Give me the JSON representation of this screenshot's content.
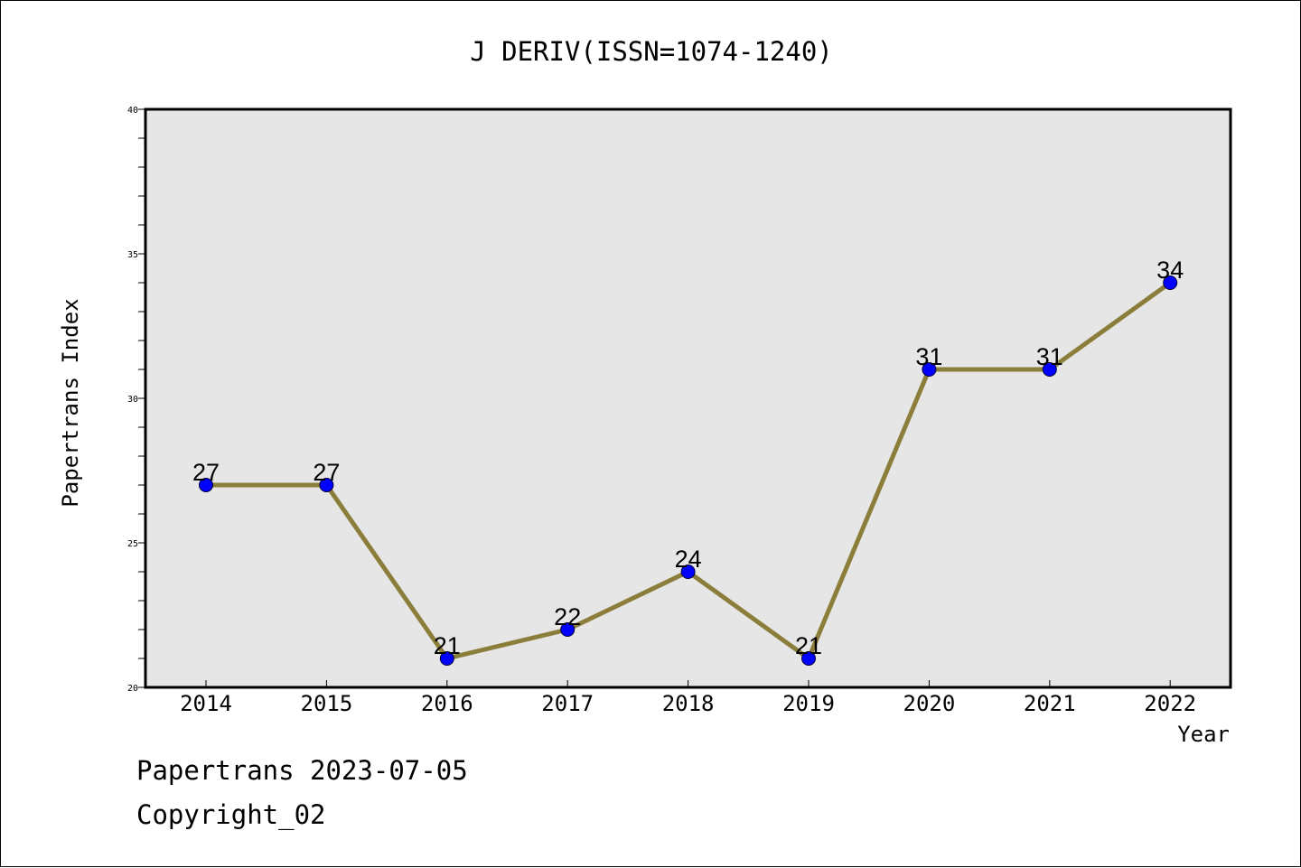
{
  "chart_data": {
    "type": "line",
    "title": "J DERIV(ISSN=1074-1240)",
    "xlabel": "Year",
    "ylabel": "Papertrans Index",
    "categories": [
      "2014",
      "2015",
      "2016",
      "2017",
      "2018",
      "2019",
      "2020",
      "2021",
      "2022"
    ],
    "values": [
      27,
      27,
      21,
      22,
      24,
      21,
      31,
      31,
      34
    ],
    "ylim": [
      20,
      40
    ],
    "yticks": [
      "20",
      "25",
      "30",
      "35",
      "40"
    ],
    "grid": false,
    "legend": "none",
    "colors": {
      "line": "#8b7d3a",
      "marker": "#0000ff",
      "plot_background": "#e6e6e6"
    }
  },
  "footer": {
    "line1": "Papertrans 2023-07-05",
    "line2": "Copyright_02"
  }
}
